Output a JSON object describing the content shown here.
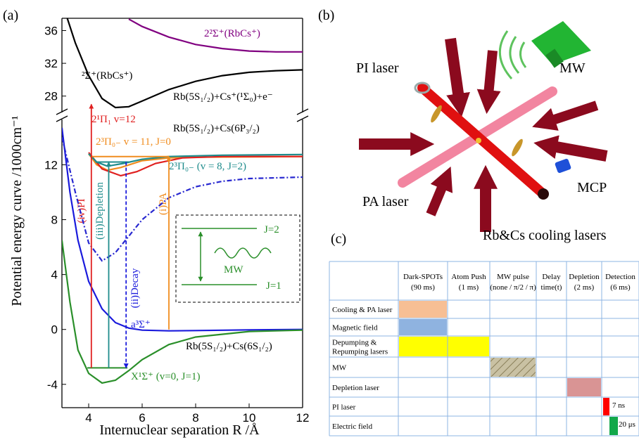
{
  "panel_labels": [
    "(a)",
    "(b)",
    "(c)"
  ],
  "chart_data": {
    "type": "line",
    "xlabel": "Internuclear separation R /Å",
    "ylabel": "Potential energy curve /1000cm⁻¹",
    "xlim": [
      3,
      12
    ],
    "xticks": [
      4,
      6,
      8,
      10,
      12
    ],
    "ylim_segments": [
      [
        -5.7,
        15.3
      ],
      [
        26,
        37.5
      ]
    ],
    "yticks": [
      -4,
      0,
      4,
      8,
      12,
      28,
      32,
      36
    ],
    "series": [
      {
        "color": "#000000",
        "dash": "solid",
        "x": [
          3.2,
          3.5,
          4,
          4.5,
          5,
          5.5,
          6,
          7,
          8,
          9,
          10,
          11,
          12
        ],
        "values": [
          37.5,
          34.5,
          30.5,
          27.7,
          26.6,
          26.7,
          27.4,
          28.8,
          29.8,
          30.5,
          30.9,
          31.1,
          31.2
        ]
      },
      {
        "color": "#800080",
        "dash": "solid",
        "x": [
          5.5,
          6,
          7,
          8,
          9,
          10,
          11,
          12
        ],
        "values": [
          37.4,
          36.5,
          35.2,
          34.3,
          33.8,
          33.5,
          33.4,
          33.4
        ]
      },
      {
        "color": "#1a1adc",
        "dash": "solid",
        "x": [
          3,
          3.3,
          3.6,
          4,
          4.5,
          5,
          5.5,
          6,
          7,
          8,
          10,
          12
        ],
        "values": [
          14.7,
          10,
          6.5,
          3.5,
          1.5,
          0.5,
          0.1,
          -0.05,
          -0.1,
          -0.08,
          -0.03,
          0
        ]
      },
      {
        "color": "#2a8f2a",
        "dash": "solid",
        "x": [
          3,
          3.3,
          3.6,
          4,
          4.5,
          5,
          5.5,
          6,
          7,
          8,
          10,
          12
        ],
        "values": [
          6.5,
          2,
          -1.5,
          -3.2,
          -3.9,
          -3.7,
          -3,
          -2.2,
          -1.1,
          -0.55,
          -0.15,
          -0.05
        ]
      },
      {
        "color": "#2828d0",
        "dash": "dashdot",
        "x": [
          3,
          3.5,
          4,
          4.5,
          5,
          5.5,
          6,
          7,
          8,
          9,
          10,
          12
        ],
        "values": [
          14,
          10,
          6.3,
          5,
          5.6,
          6.8,
          8,
          9.6,
          10.4,
          10.8,
          11,
          11.1
        ]
      },
      {
        "color": "#f08c1e",
        "dash": "solid",
        "x": [
          4,
          4.3,
          4.7,
          5.2,
          6,
          7,
          8,
          12
        ],
        "values": [
          12.8,
          12,
          11.6,
          11.8,
          12.3,
          12.5,
          12.55,
          12.6
        ]
      },
      {
        "color": "#e02020",
        "dash": "solid",
        "x": [
          4,
          4.5,
          5.2,
          5.8,
          6.5,
          7.5,
          9,
          12
        ],
        "values": [
          12.9,
          11.7,
          11.2,
          11.5,
          12.1,
          12.5,
          12.6,
          12.6
        ]
      },
      {
        "color": "#1e8c8c",
        "dash": "solid",
        "x": [
          4,
          4.3,
          4.7,
          5.3,
          6,
          7,
          9,
          12
        ],
        "values": [
          12.8,
          12.2,
          11.9,
          12.1,
          12.4,
          12.6,
          12.7,
          12.75
        ]
      }
    ],
    "transitions": [
      {
        "label": "(iv)PI",
        "x": 4.1,
        "from": -2.8,
        "to": 27,
        "color": "#e02020",
        "dash": "solid"
      },
      {
        "label": "(iii)Depletion",
        "x": 4.75,
        "from": -2.8,
        "to": 12.2,
        "color": "#1e8c8c",
        "dash": "solid"
      },
      {
        "label": "(ii)Decay",
        "x": 5.4,
        "from": 12.2,
        "to": -2.8,
        "color": "#1a1adc",
        "dash": "dashed"
      },
      {
        "label": "(i)PA",
        "x": 7,
        "from": 0,
        "to": 12.6,
        "color": "#f08c1e",
        "dash": "solid"
      }
    ],
    "levels": [
      {
        "y": 12.6,
        "x": [
          4.1,
          7
        ],
        "color": "#f08c1e"
      },
      {
        "y": 12.2,
        "x": [
          4.25,
          5.5
        ],
        "color": "#1e8c8c"
      },
      {
        "y": -2.8,
        "x": [
          3.95,
          5.45
        ],
        "color": "#2a8f2a"
      }
    ],
    "annotations": [
      "2²Σ⁺(RbCs⁺)",
      "²Σ⁺(RbCs⁺)",
      "Rb(5S₁/₂)+Cs⁺(¹Σ₀)+e⁻",
      "2¹Π₁ v=12",
      "Rb(5S₁/₂)+Cs(6P₃/₂)",
      "2³Π₀₋ v = 11, J=0",
      "2³Π₀₋ (v = 8, J=2)",
      "a³Σ⁺",
      "Rb(5S₁/₂)+Cs(6S₁/₂)",
      "X¹Σ⁺ (v=0, J=1)"
    ],
    "inset": {
      "upper": "J=2",
      "lower": "J=1",
      "label": "MW"
    }
  },
  "panel_b": {
    "labels": [
      "PI laser",
      "MW",
      "MCP",
      "PA laser",
      "Rb&Cs cooling lasers"
    ]
  },
  "panel_c": {
    "columns": [
      [
        "Dark-SPOTs",
        "(90 ms)"
      ],
      [
        "Atom Push",
        "(1 ms)"
      ],
      [
        "MW pulse",
        "(none / π/2 / π)"
      ],
      [
        "Delay",
        "time(t)"
      ],
      [
        "Depletion",
        "(2 ms)"
      ],
      [
        "Detection",
        "(6 ms)"
      ]
    ],
    "rows": [
      [
        "Cooling & PA laser"
      ],
      [
        "Magnetic field"
      ],
      [
        "Depumping &",
        "Repumping lasers"
      ],
      [
        "MW"
      ],
      [
        "Depletion laser"
      ],
      [
        "PI laser"
      ],
      [
        "Electric field"
      ]
    ],
    "notes": [
      "7 ns",
      "20 μs"
    ]
  }
}
